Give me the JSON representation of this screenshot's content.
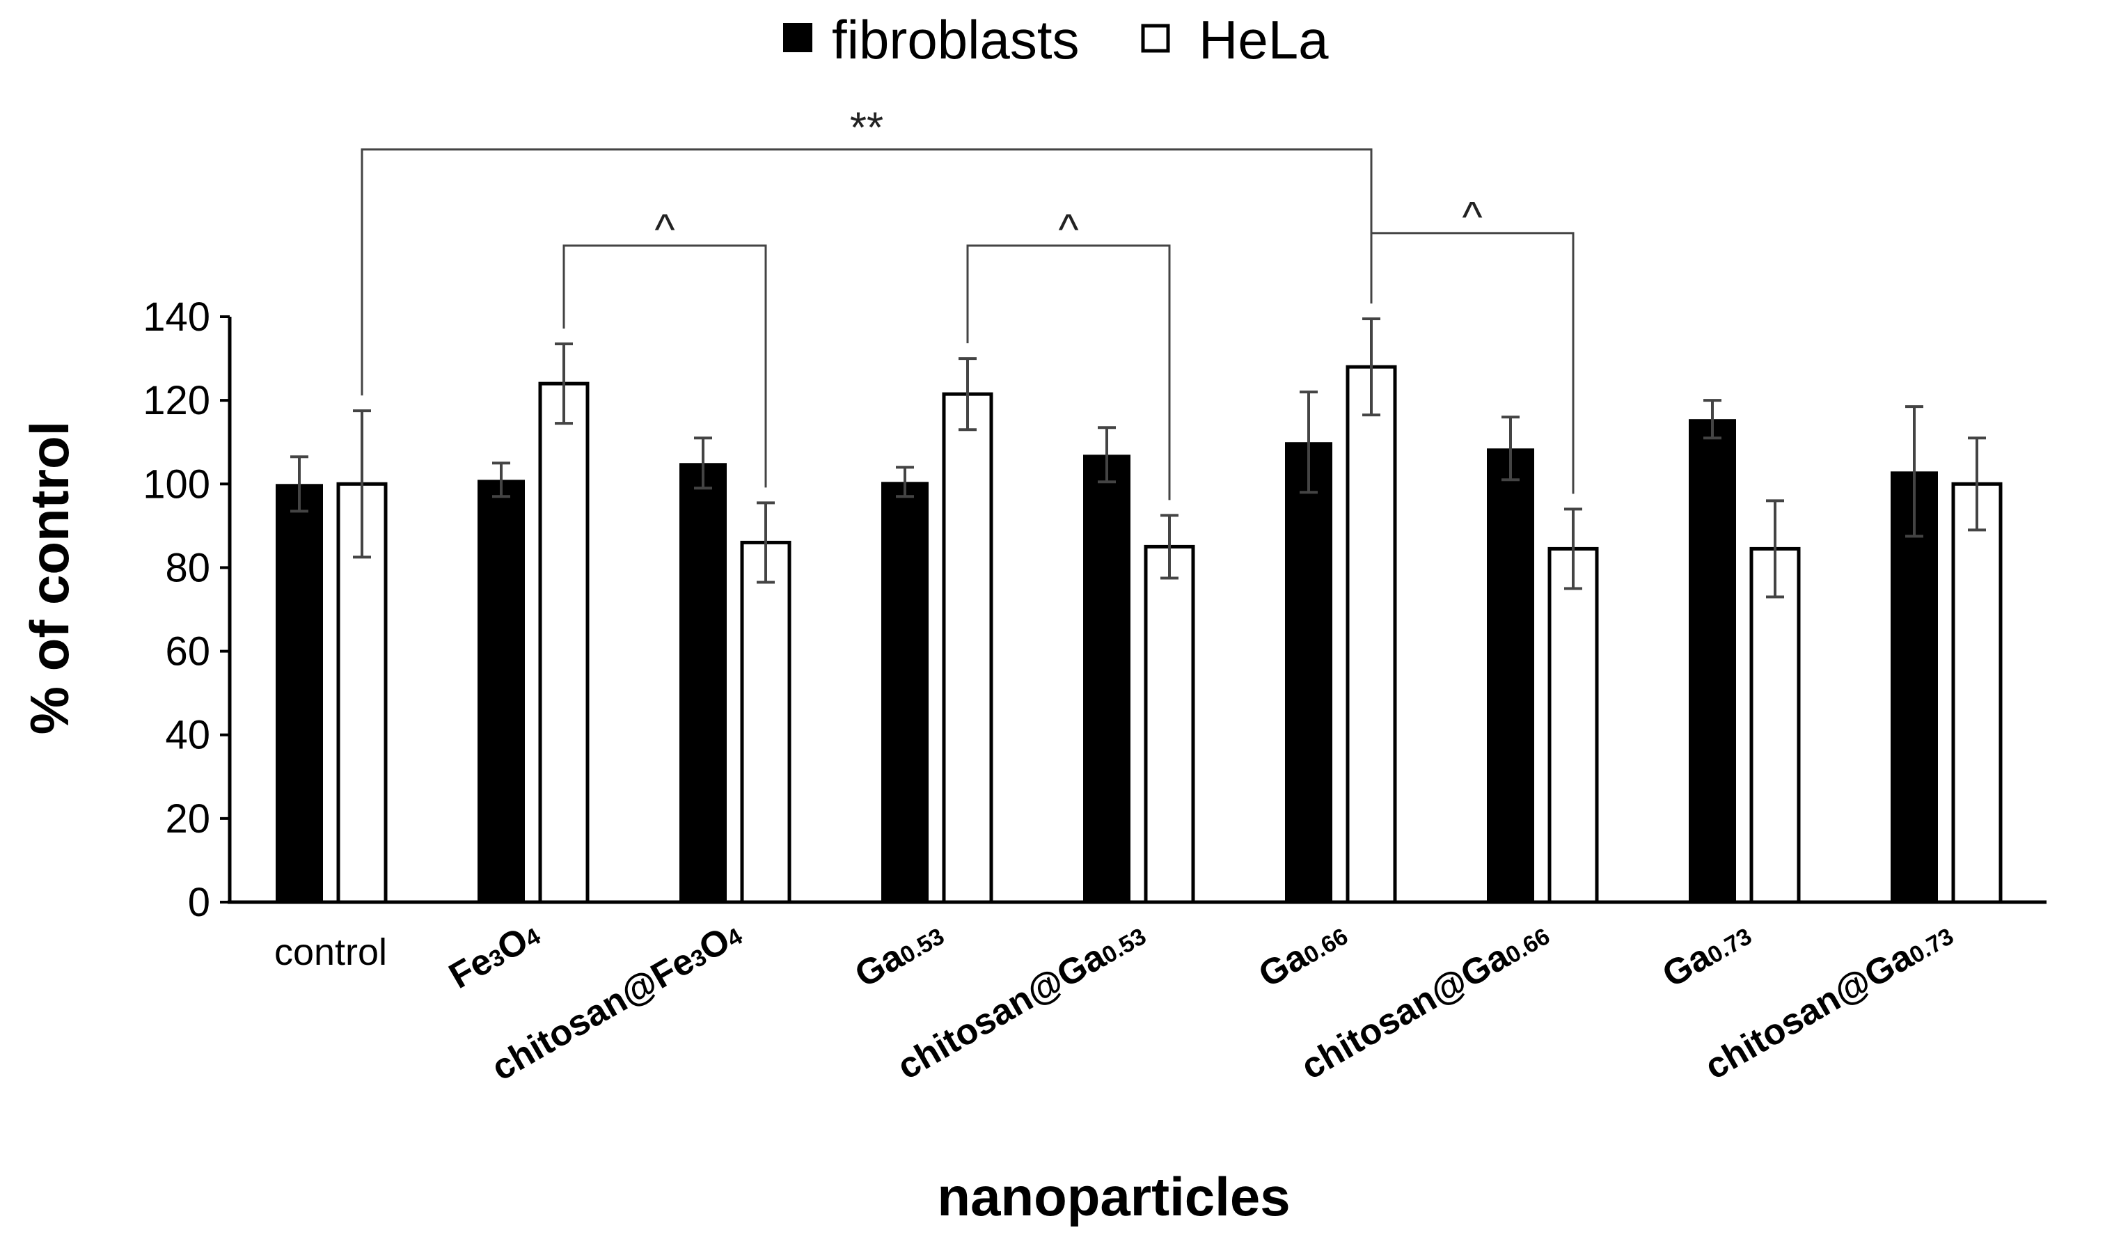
{
  "chart_data": {
    "type": "bar",
    "title": "",
    "xlabel": "nanoparticles",
    "ylabel": "% of control",
    "ylim": [
      0,
      140
    ],
    "yticks": [
      "0",
      "20",
      "40",
      "60",
      "80",
      "100",
      "120",
      "140"
    ],
    "legend": {
      "placement": "top-center",
      "entries": [
        "fibroblasts",
        "HeLa"
      ]
    },
    "categories": [
      {
        "label": "control",
        "base": "control",
        "sub": "",
        "tail": "",
        "rotated": false
      },
      {
        "label": "Fe3O4",
        "base": "Fe",
        "sub": "3",
        "tail": "O4",
        "rotated": true
      },
      {
        "label": "chitosan@Fe3O4",
        "base": "chitosan@Fe",
        "sub": "3",
        "tail": "O4",
        "rotated": true
      },
      {
        "label": "Ga0.53",
        "base": "Ga",
        "sub": "0.53",
        "tail": "",
        "rotated": true
      },
      {
        "label": "chitosan@Ga0.53",
        "base": "chitosan@Ga",
        "sub": "0.53",
        "tail": "",
        "rotated": true
      },
      {
        "label": "Ga0.66",
        "base": "Ga",
        "sub": "0.66",
        "tail": "",
        "rotated": true
      },
      {
        "label": "chitosan@Ga0.66",
        "base": "chitosan@Ga",
        "sub": "0.66",
        "tail": "",
        "rotated": true
      },
      {
        "label": "Ga0.73",
        "base": "Ga",
        "sub": "0.73",
        "tail": "",
        "rotated": true
      },
      {
        "label": "chitosan@Ga0.73",
        "base": "chitosan@Ga",
        "sub": "0.73",
        "tail": "",
        "rotated": true
      }
    ],
    "series": [
      {
        "name": "fibroblasts",
        "fill": "#000000",
        "values": [
          100,
          101,
          105,
          100.5,
          107,
          110,
          108.5,
          115.5,
          103
        ],
        "errors": [
          6.5,
          4,
          6,
          3.5,
          6.5,
          12,
          7.5,
          4.5,
          15.5
        ]
      },
      {
        "name": "HeLa",
        "fill": "#ffffff",
        "values": [
          100,
          124,
          86,
          121.5,
          85,
          128,
          84.5,
          84.5,
          100
        ],
        "errors": [
          17.5,
          9.5,
          9.5,
          8.5,
          7.5,
          11.5,
          9.5,
          11.5,
          11
        ]
      }
    ],
    "significance": [
      {
        "label": "**",
        "from_category": 0,
        "from_series": 1,
        "to_category": 5,
        "to_series": 1,
        "level": 180
      },
      {
        "label": "^",
        "from_category": 1,
        "from_series": 1,
        "to_category": 2,
        "to_series": 1,
        "level": 157
      },
      {
        "label": "^",
        "from_category": 3,
        "from_series": 1,
        "to_category": 4,
        "to_series": 1,
        "level": 157
      },
      {
        "label": "^",
        "from_category": 5,
        "from_series": 1,
        "to_category": 6,
        "to_series": 1,
        "level": 160
      }
    ],
    "colors": {
      "axis": "#000000",
      "error_bar": "#444444",
      "bracket": "#444444"
    }
  }
}
